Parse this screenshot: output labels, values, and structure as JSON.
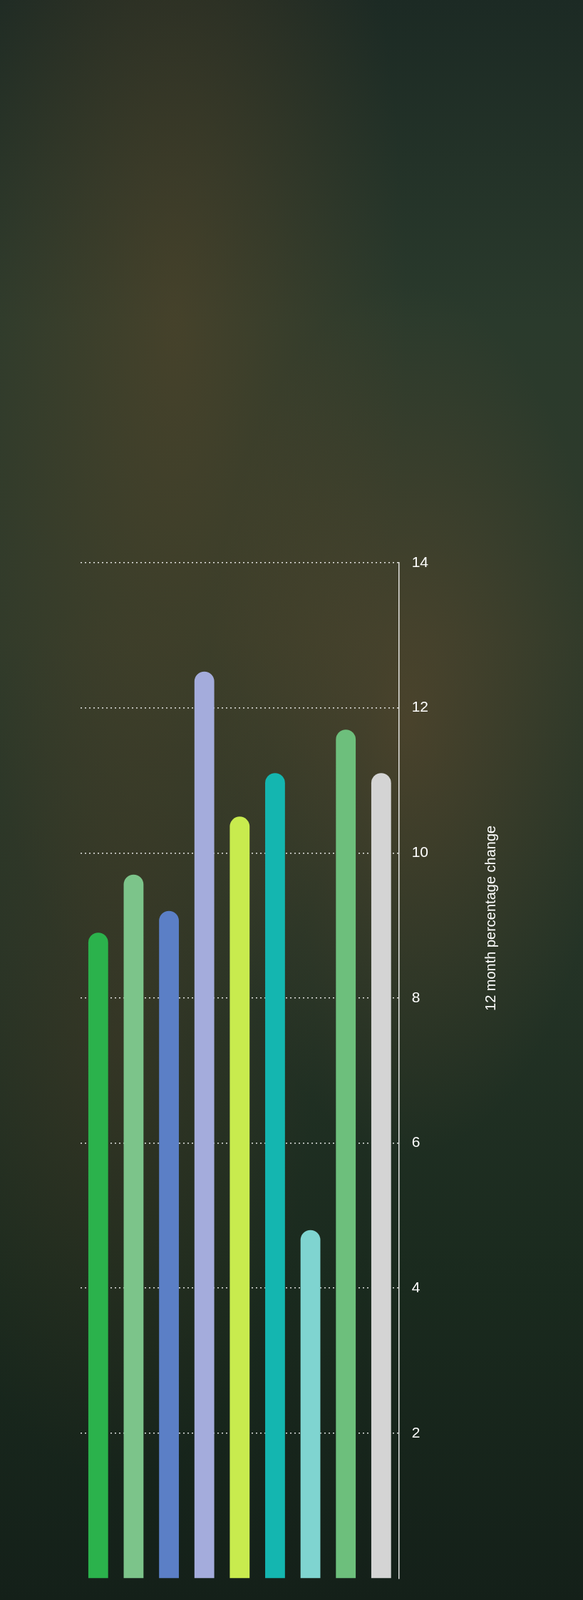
{
  "chart_data": {
    "type": "bar",
    "categories": [
      null,
      null,
      null,
      null,
      null,
      null,
      null,
      null,
      null
    ],
    "values": [
      8.9,
      9.7,
      9.2,
      12.5,
      10.5,
      11.1,
      4.8,
      11.7,
      11.1
    ],
    "colors": [
      "#2bb24c",
      "#7cc48a",
      "#5b7fc6",
      "#a4acdc",
      "#c8eb4e",
      "#14b6b0",
      "#7fd4d0",
      "#6dbf7c",
      "#d4d4d4"
    ],
    "y_label": "12 month percentage change",
    "ylim": [
      0,
      14
    ],
    "yticks": [
      2,
      4,
      6,
      8,
      10,
      12,
      14
    ],
    "grid": true,
    "tick_labels": "y"
  }
}
